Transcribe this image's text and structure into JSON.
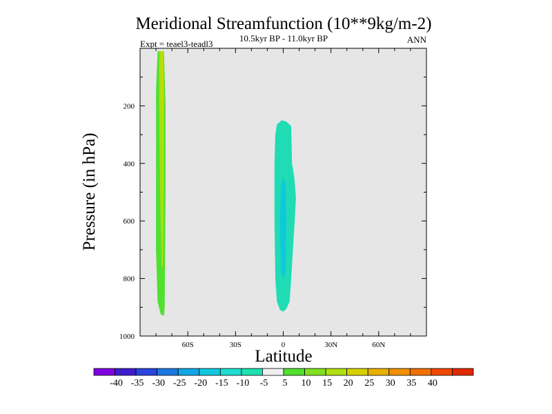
{
  "chart_data": {
    "type": "heatmap",
    "title": "Meridional Streamfunction (10**9kg/m-2)",
    "subtitle": "10.5kyr BP - 11.0kyr BP",
    "experiment": "Expt = teael3-teadl3",
    "season": "ANN",
    "xlabel": "Latitude",
    "ylabel": "Pressure (in hPa)",
    "xlim": [
      -90,
      90
    ],
    "ylim": [
      1000,
      0
    ],
    "x_ticks": [
      {
        "value": -60,
        "label": "60S"
      },
      {
        "value": -30,
        "label": "30S"
      },
      {
        "value": 0,
        "label": "0"
      },
      {
        "value": 30,
        "label": "30N"
      },
      {
        "value": 60,
        "label": "60N"
      }
    ],
    "y_ticks": [
      {
        "value": 200,
        "label": "200"
      },
      {
        "value": 400,
        "label": "400"
      },
      {
        "value": 600,
        "label": "600"
      },
      {
        "value": 800,
        "label": "800"
      },
      {
        "value": 1000,
        "label": "1000"
      }
    ],
    "background_color": "#e6e6e6",
    "colorbar": {
      "colors": [
        "#7f00e0",
        "#3c1ccc",
        "#2a44e0",
        "#1a78e0",
        "#10a6e6",
        "#10c8e0",
        "#20dcd0",
        "#20e0b0",
        "#f0f0f0",
        "#50e030",
        "#80e020",
        "#b0e010",
        "#d8d000",
        "#e8b000",
        "#f09000",
        "#f07000",
        "#f04800",
        "#e02800"
      ],
      "labels": [
        "-40",
        "-35",
        "-30",
        "-25",
        "-20",
        "-15",
        "-10",
        "-5",
        "5",
        "10",
        "15",
        "20",
        "25",
        "30",
        "35",
        "40"
      ]
    },
    "regions": [
      {
        "name": "sh-cell-outer",
        "value": 7.5,
        "color": "#50e030",
        "outline": [
          [
            -79,
            10
          ],
          [
            -75,
            10
          ],
          [
            -74,
            200
          ],
          [
            -74,
            500
          ],
          [
            -74.5,
            900
          ],
          [
            -75,
            930
          ],
          [
            -77,
            925
          ],
          [
            -79,
            880
          ],
          [
            -80,
            700
          ],
          [
            -80,
            400
          ],
          [
            -80,
            150
          ]
        ]
      },
      {
        "name": "sh-cell-middle",
        "value": 12.5,
        "color": "#a4e010",
        "outline": [
          [
            -78,
            10
          ],
          [
            -75.2,
            10
          ],
          [
            -74.8,
            200
          ],
          [
            -75,
            500
          ],
          [
            -75.5,
            760
          ],
          [
            -76.5,
            760
          ],
          [
            -77.4,
            500
          ],
          [
            -78,
            200
          ]
        ]
      },
      {
        "name": "sh-cell-core",
        "value": 17.5,
        "color": "#c8d800",
        "outline": [
          [
            -77,
            10
          ],
          [
            -75.8,
            10
          ],
          [
            -75.6,
            150
          ],
          [
            -76.2,
            300
          ],
          [
            -77,
            150
          ]
        ]
      },
      {
        "name": "eq-cell-outer",
        "value": -7.5,
        "color": "#20dcb4",
        "outline": [
          [
            -5,
            300
          ],
          [
            -4,
            265
          ],
          [
            -1,
            250
          ],
          [
            2,
            255
          ],
          [
            5,
            270
          ],
          [
            5.5,
            400
          ],
          [
            7,
            450
          ],
          [
            8,
            520
          ],
          [
            7,
            620
          ],
          [
            5,
            800
          ],
          [
            4,
            880
          ],
          [
            2,
            905
          ],
          [
            0,
            915
          ],
          [
            -2,
            910
          ],
          [
            -4,
            880
          ],
          [
            -5,
            800
          ],
          [
            -5.5,
            600
          ],
          [
            -5.5,
            400
          ]
        ]
      },
      {
        "name": "eq-cell-core",
        "value": -12.5,
        "color": "#10c8dc",
        "outline": [
          [
            -1.5,
            480
          ],
          [
            0,
            450
          ],
          [
            1.5,
            470
          ],
          [
            2,
            600
          ],
          [
            1.5,
            780
          ],
          [
            0,
            800
          ],
          [
            -1.5,
            780
          ],
          [
            -2,
            600
          ]
        ]
      }
    ]
  }
}
